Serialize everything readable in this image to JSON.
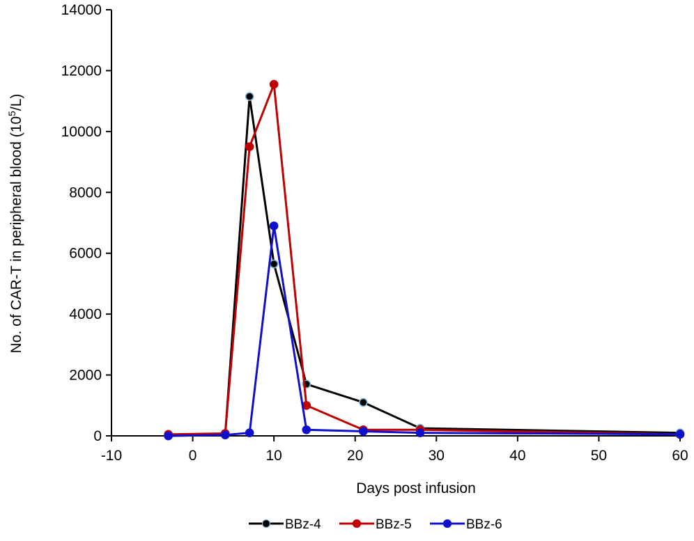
{
  "chart_data": {
    "type": "line",
    "title": "",
    "xlabel": "Days post infusion",
    "ylabel": {
      "prefix": "No. of CAR-T in peripheral blood (10",
      "superscript": "5",
      "suffix": "/L)"
    },
    "xlim": [
      -10,
      60
    ],
    "ylim": [
      0,
      14000
    ],
    "xticks": [
      -10,
      0,
      10,
      20,
      30,
      40,
      50,
      60
    ],
    "yticks": [
      0,
      2000,
      4000,
      6000,
      8000,
      10000,
      12000,
      14000
    ],
    "grid": false,
    "legend_position": "bottom-center",
    "series": [
      {
        "name": "BBz-4",
        "color": "#000000",
        "marker_fill": "#000000",
        "marker_stroke": "#7fb3d5",
        "points": [
          [
            -3,
            0
          ],
          [
            4,
            30
          ],
          [
            7,
            11150
          ],
          [
            10,
            5650
          ],
          [
            14,
            1700
          ],
          [
            21,
            1100
          ],
          [
            28,
            250
          ],
          [
            60,
            100
          ]
        ]
      },
      {
        "name": "BBz-5",
        "color": "#c00000",
        "marker_fill": "#c00000",
        "marker_stroke": "#c00000",
        "points": [
          [
            -3,
            50
          ],
          [
            4,
            80
          ],
          [
            7,
            9500
          ],
          [
            10,
            11550
          ],
          [
            14,
            1000
          ],
          [
            21,
            200
          ],
          [
            28,
            200
          ],
          [
            60,
            50
          ]
        ]
      },
      {
        "name": "BBz-6",
        "color": "#1010cc",
        "marker_fill": "#1010cc",
        "marker_stroke": "#1010cc",
        "points": [
          [
            -3,
            0
          ],
          [
            4,
            30
          ],
          [
            7,
            100
          ],
          [
            10,
            6900
          ],
          [
            14,
            200
          ],
          [
            21,
            150
          ],
          [
            28,
            100
          ],
          [
            60,
            50
          ]
        ]
      }
    ]
  }
}
